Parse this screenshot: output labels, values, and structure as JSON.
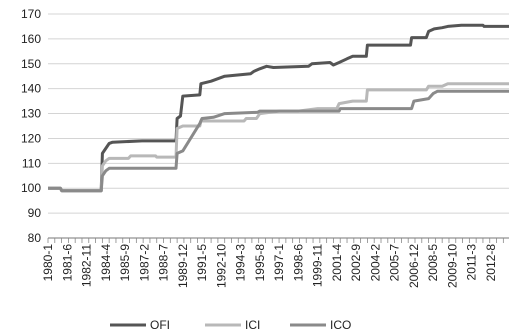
{
  "chart_data": {
    "type": "line",
    "title": "",
    "xlabel": "",
    "ylabel": "",
    "ylim": [
      80,
      170
    ],
    "yticks": [
      80,
      90,
      100,
      110,
      120,
      130,
      140,
      150,
      160,
      170
    ],
    "xticks": [
      "1980-1",
      "1981-6",
      "1982-11",
      "1984-4",
      "1985-9",
      "1987-2",
      "1988-7",
      "1989-12",
      "1991-5",
      "1992-10",
      "1994-3",
      "1995-8",
      "1997-1",
      "1998-6",
      "1999-11",
      "2001-4",
      "2002-9",
      "2004-2",
      "2005-7",
      "2006-12",
      "2008-5",
      "2009-10",
      "2011-3",
      "2012-8"
    ],
    "x_start": "1980-1",
    "x_end": "2013-12",
    "grid": "horizontal",
    "legend": "bottom",
    "series": [
      {
        "name": "OFI",
        "color": "#555555",
        "points": [
          [
            "1980-1",
            100
          ],
          [
            "1980-12",
            100
          ],
          [
            "1981-1",
            99
          ],
          [
            "1983-12",
            99
          ],
          [
            "1984-1",
            114
          ],
          [
            "1984-4",
            116
          ],
          [
            "1984-7",
            118
          ],
          [
            "1984-10",
            118.5
          ],
          [
            "1986-12",
            119
          ],
          [
            "1989-6",
            119
          ],
          [
            "1989-7",
            128
          ],
          [
            "1989-10",
            129
          ],
          [
            "1989-12",
            137
          ],
          [
            "1991-3",
            137.5
          ],
          [
            "1991-4",
            142
          ],
          [
            "1992-1",
            143
          ],
          [
            "1993-1",
            145
          ],
          [
            "1994-12",
            146
          ],
          [
            "1995-3",
            147
          ],
          [
            "1995-8",
            148
          ],
          [
            "1996-2",
            149
          ],
          [
            "1996-8",
            148.5
          ],
          [
            "1999-3",
            149
          ],
          [
            "1999-6",
            150
          ],
          [
            "2000-10",
            150.5
          ],
          [
            "2001-1",
            149.5
          ],
          [
            "2001-6",
            150.5
          ],
          [
            "2002-1",
            152
          ],
          [
            "2002-6",
            153
          ],
          [
            "2003-6",
            153
          ],
          [
            "2003-7",
            157.5
          ],
          [
            "2006-9",
            157.5
          ],
          [
            "2006-10",
            160.5
          ],
          [
            "2007-11",
            160.5
          ],
          [
            "2008-1",
            163
          ],
          [
            "2008-6",
            164
          ],
          [
            "2009-1",
            164.5
          ],
          [
            "2009-6",
            165
          ],
          [
            "2010-6",
            165.5
          ],
          [
            "2012-1",
            165.5
          ],
          [
            "2012-2",
            165
          ],
          [
            "2013-12",
            165
          ]
        ]
      },
      {
        "name": "ICI",
        "color": "#b8b8b8",
        "points": [
          [
            "1980-1",
            100
          ],
          [
            "1980-12",
            100
          ],
          [
            "1981-1",
            99
          ],
          [
            "1983-12",
            99
          ],
          [
            "1984-1",
            109
          ],
          [
            "1984-4",
            111
          ],
          [
            "1984-7",
            112
          ],
          [
            "1985-12",
            112
          ],
          [
            "1986-2",
            113
          ],
          [
            "1987-12",
            113
          ],
          [
            "1988-1",
            112.5
          ],
          [
            "1989-6",
            112.5
          ],
          [
            "1989-7",
            124
          ],
          [
            "1989-12",
            125
          ],
          [
            "1991-3",
            125
          ],
          [
            "1991-4",
            127
          ],
          [
            "1994-6",
            127
          ],
          [
            "1994-8",
            128
          ],
          [
            "1995-5",
            128
          ],
          [
            "1995-8",
            130
          ],
          [
            "1997-1",
            131
          ],
          [
            "1998-6",
            131
          ],
          [
            "1999-11",
            132
          ],
          [
            "2001-4",
            132
          ],
          [
            "2001-6",
            134
          ],
          [
            "2002-6",
            135
          ],
          [
            "2003-6",
            135
          ],
          [
            "2003-7",
            139.5
          ],
          [
            "2007-11",
            139.5
          ],
          [
            "2008-1",
            141
          ],
          [
            "2009-1",
            141
          ],
          [
            "2009-6",
            142
          ],
          [
            "2013-12",
            142
          ]
        ]
      },
      {
        "name": "ICO",
        "color": "#8a8a8a",
        "points": [
          [
            "1980-1",
            100
          ],
          [
            "1980-12",
            100
          ],
          [
            "1981-1",
            99
          ],
          [
            "1983-12",
            99
          ],
          [
            "1984-1",
            105
          ],
          [
            "1984-4",
            107
          ],
          [
            "1984-7",
            108
          ],
          [
            "1989-6",
            108
          ],
          [
            "1989-7",
            114
          ],
          [
            "1989-12",
            115
          ],
          [
            "1991-3",
            126
          ],
          [
            "1991-5",
            128
          ],
          [
            "1992-3",
            128.5
          ],
          [
            "1993-1",
            130
          ],
          [
            "1995-6",
            130.5
          ],
          [
            "1995-8",
            131
          ],
          [
            "2001-6",
            131
          ],
          [
            "2001-7",
            132
          ],
          [
            "2006-10",
            132
          ],
          [
            "2006-12",
            135
          ],
          [
            "2008-1",
            136
          ],
          [
            "2008-5",
            138
          ],
          [
            "2008-9",
            139
          ],
          [
            "2013-12",
            139
          ]
        ]
      }
    ]
  }
}
